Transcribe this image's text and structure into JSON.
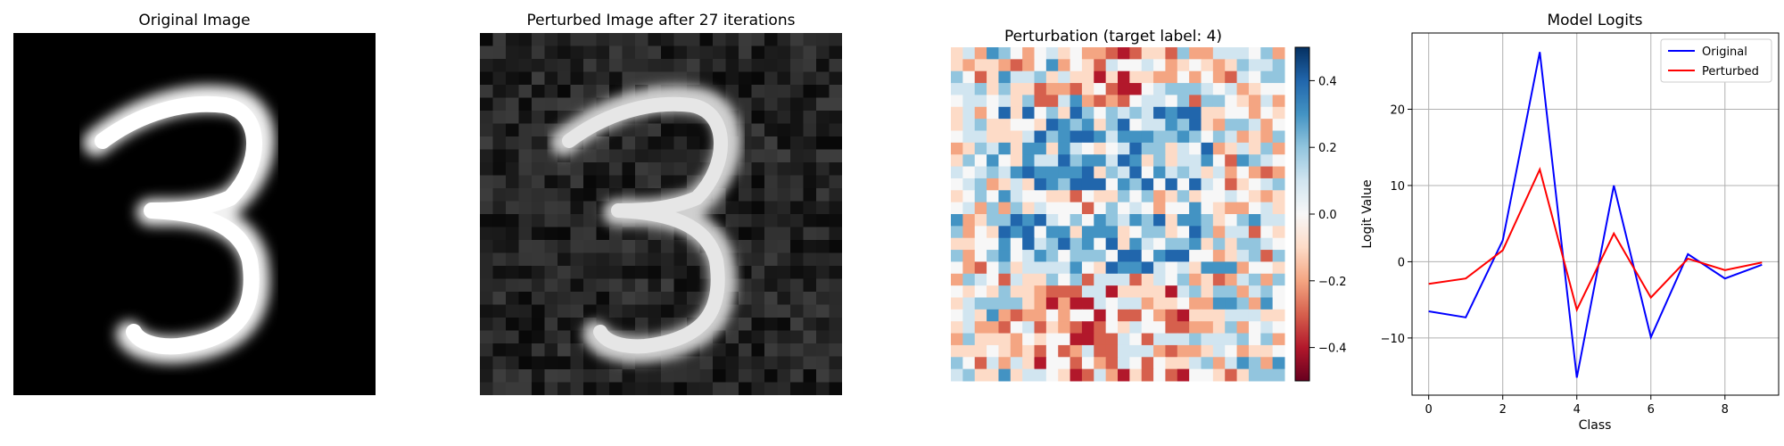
{
  "panels": {
    "original_title": "Original Image",
    "perturbed_title": "Perturbed Image after 27 iterations",
    "perturbation_title": "Perturbation (target label: 4)",
    "logits_title": "Model Logits"
  },
  "colorbar": {
    "range": [
      -0.5,
      0.5
    ],
    "ticks": [
      "0.4",
      "0.2",
      "0.0",
      "−0.2",
      "−0.4"
    ],
    "tick_values": [
      0.4,
      0.2,
      0.0,
      -0.2,
      -0.4
    ],
    "colors": [
      "#67001f",
      "#b2182b",
      "#d6604d",
      "#f4a582",
      "#fddbc7",
      "#f7f7f7",
      "#d1e5f0",
      "#92c5de",
      "#4393c3",
      "#2166ac",
      "#053061"
    ]
  },
  "chart_data": [
    {
      "type": "image",
      "title": "Original Image",
      "colormap": "gray",
      "description_label": "digit 3"
    },
    {
      "type": "image",
      "title": "Perturbed Image after 27 iterations",
      "colormap": "gray"
    },
    {
      "type": "heatmap",
      "title": "Perturbation (target label: 4)",
      "colormap": "RdBu",
      "vmin": -0.5,
      "vmax": 0.5
    },
    {
      "type": "line",
      "title": "Model Logits",
      "xlabel": "Class",
      "ylabel": "Logit Value",
      "x": [
        0,
        1,
        2,
        3,
        4,
        5,
        6,
        7,
        8,
        9
      ],
      "xlim": [
        -0.45,
        9.45
      ],
      "ylim": [
        -17.5,
        30
      ],
      "xticks": [
        "0",
        "2",
        "4",
        "6",
        "8"
      ],
      "xtick_values": [
        0,
        2,
        4,
        6,
        8
      ],
      "yticks": [
        "−10",
        "0",
        "10",
        "20"
      ],
      "ytick_values": [
        -10,
        0,
        10,
        20
      ],
      "grid": true,
      "legend_position": "top-right",
      "series": [
        {
          "name": "Original",
          "color": "#0000ff",
          "values": [
            -6.5,
            -7.3,
            2.8,
            27.5,
            -15.2,
            10.0,
            -9.9,
            1.0,
            -2.2,
            -0.4
          ]
        },
        {
          "name": "Perturbed",
          "color": "#ff0000",
          "values": [
            -2.9,
            -2.2,
            1.5,
            12.1,
            -6.3,
            3.7,
            -4.7,
            0.4,
            -1.1,
            -0.1
          ]
        }
      ]
    }
  ]
}
